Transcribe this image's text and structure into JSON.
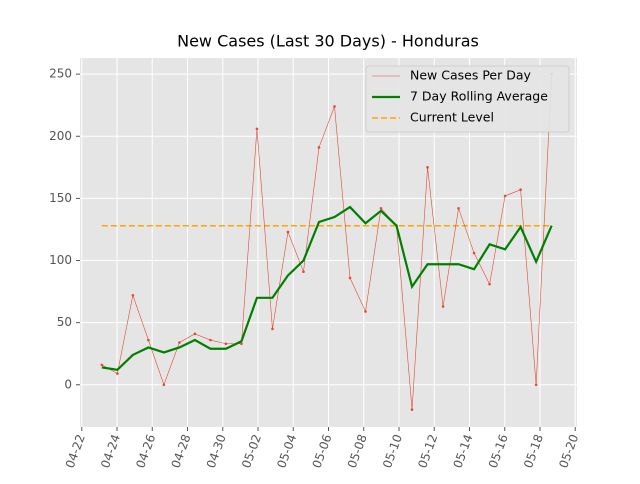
{
  "chart_data": {
    "type": "line",
    "title": "New Cases (Last 30 Days) - Honduras",
    "x": [
      1.14,
      2.02,
      2.9,
      3.78,
      4.66,
      5.54,
      6.42,
      7.3,
      8.18,
      9.06,
      9.94,
      10.82,
      11.7,
      12.58,
      13.46,
      14.34,
      15.22,
      16.1,
      16.98,
      17.86,
      18.74,
      19.62,
      20.5,
      21.38,
      22.26,
      23.14,
      24.02,
      24.9,
      25.78,
      26.66
    ],
    "series": [
      {
        "name": "New Cases Per Day",
        "color": "#e24a33",
        "width": 0.6,
        "markers": true,
        "values": [
          16,
          9,
          72,
          36,
          0,
          34,
          41,
          36,
          33,
          33,
          206,
          45,
          123,
          91,
          191,
          224,
          86,
          59,
          142,
          128,
          -20,
          175,
          63,
          142,
          106,
          81,
          152,
          157,
          0,
          250
        ]
      },
      {
        "name": "7 Day Rolling Average",
        "color": "#008000",
        "width": 2.2,
        "markers": false,
        "values": [
          14,
          12,
          24,
          30,
          26,
          30,
          36,
          29,
          29,
          35,
          70,
          70,
          88,
          100,
          131,
          135,
          143,
          130,
          140,
          128,
          79,
          97,
          97,
          97,
          93,
          113,
          109,
          127,
          99,
          128
        ]
      }
    ],
    "reference_line": {
      "name": "Current Level",
      "value": 128,
      "color": "#ffa500"
    },
    "xlim": [
      -0.1,
      28.1
    ],
    "xticks": [
      {
        "value": 0,
        "label": "04-22"
      },
      {
        "value": 2,
        "label": "04-24"
      },
      {
        "value": 4,
        "label": "04-26"
      },
      {
        "value": 6,
        "label": "04-28"
      },
      {
        "value": 8,
        "label": "04-30"
      },
      {
        "value": 10,
        "label": "05-02"
      },
      {
        "value": 12,
        "label": "05-04"
      },
      {
        "value": 14,
        "label": "05-06"
      },
      {
        "value": 16,
        "label": "05-08"
      },
      {
        "value": 18,
        "label": "05-10"
      },
      {
        "value": 20,
        "label": "05-12"
      },
      {
        "value": 22,
        "label": "05-14"
      },
      {
        "value": 24,
        "label": "05-16"
      },
      {
        "value": 26,
        "label": "05-18"
      },
      {
        "value": 28,
        "label": "05-20"
      }
    ],
    "ylim": [
      -34,
      263
    ],
    "yticks": [
      0,
      50,
      100,
      150,
      200,
      250
    ],
    "grid": true,
    "legend": "upper right"
  }
}
